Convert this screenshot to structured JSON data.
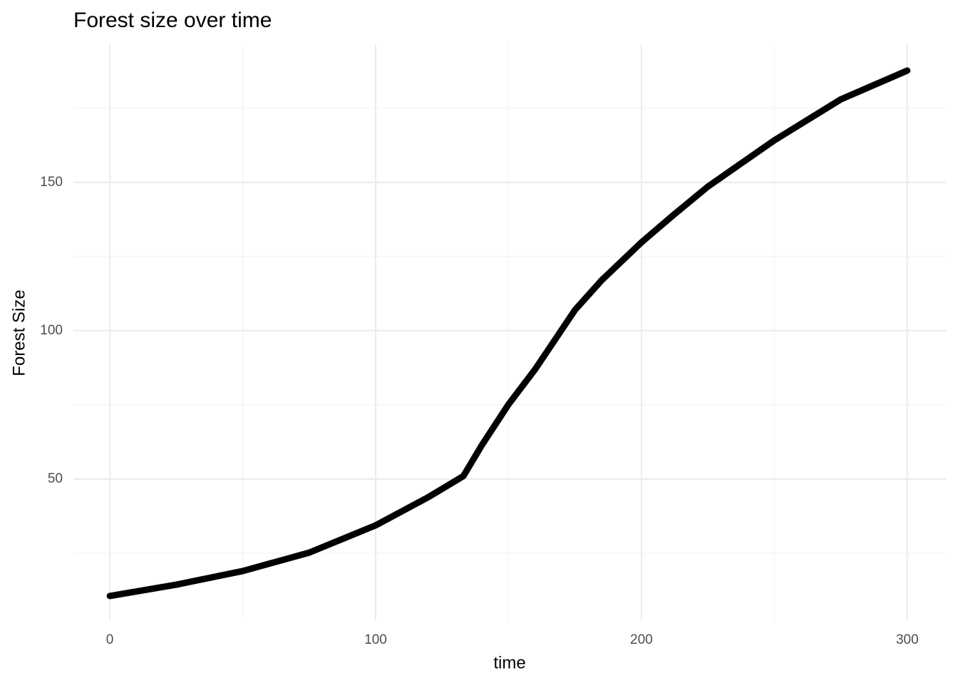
{
  "chart_data": {
    "type": "line",
    "title": "Forest size over time",
    "x_label": "time",
    "y_label": "Forest Size",
    "x": [
      0,
      25,
      50,
      75,
      100,
      120,
      133,
      140,
      150,
      160,
      175,
      185,
      200,
      212,
      225,
      250,
      275,
      300
    ],
    "series": [
      {
        "name": "Forest Size",
        "color": "#000000",
        "values": [
          10.6,
          14.4,
          19.0,
          25.2,
          34.4,
          44.0,
          51.0,
          61.5,
          75.2,
          87.0,
          107.0,
          117.0,
          129.8,
          139.0,
          148.6,
          164.2,
          178.0,
          187.7
        ]
      }
    ],
    "xlim": [
      -13.7,
      314.8
    ],
    "ylim": [
      2.4,
      196.6
    ],
    "xticks": [
      0,
      100,
      200,
      300
    ],
    "yticks": [
      50,
      100,
      150
    ],
    "minor_xticks": [
      50,
      150,
      250
    ],
    "minor_yticks": [
      25,
      75,
      125,
      175
    ],
    "grid": true
  }
}
